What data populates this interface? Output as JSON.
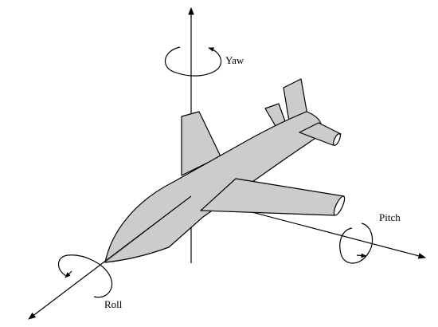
{
  "labels": {
    "yaw": "Yaw",
    "pitch": "Pitch",
    "roll": "Roll"
  },
  "colors": {
    "fill": "#cccccc",
    "stroke": "#000000",
    "background": "#ffffff"
  }
}
